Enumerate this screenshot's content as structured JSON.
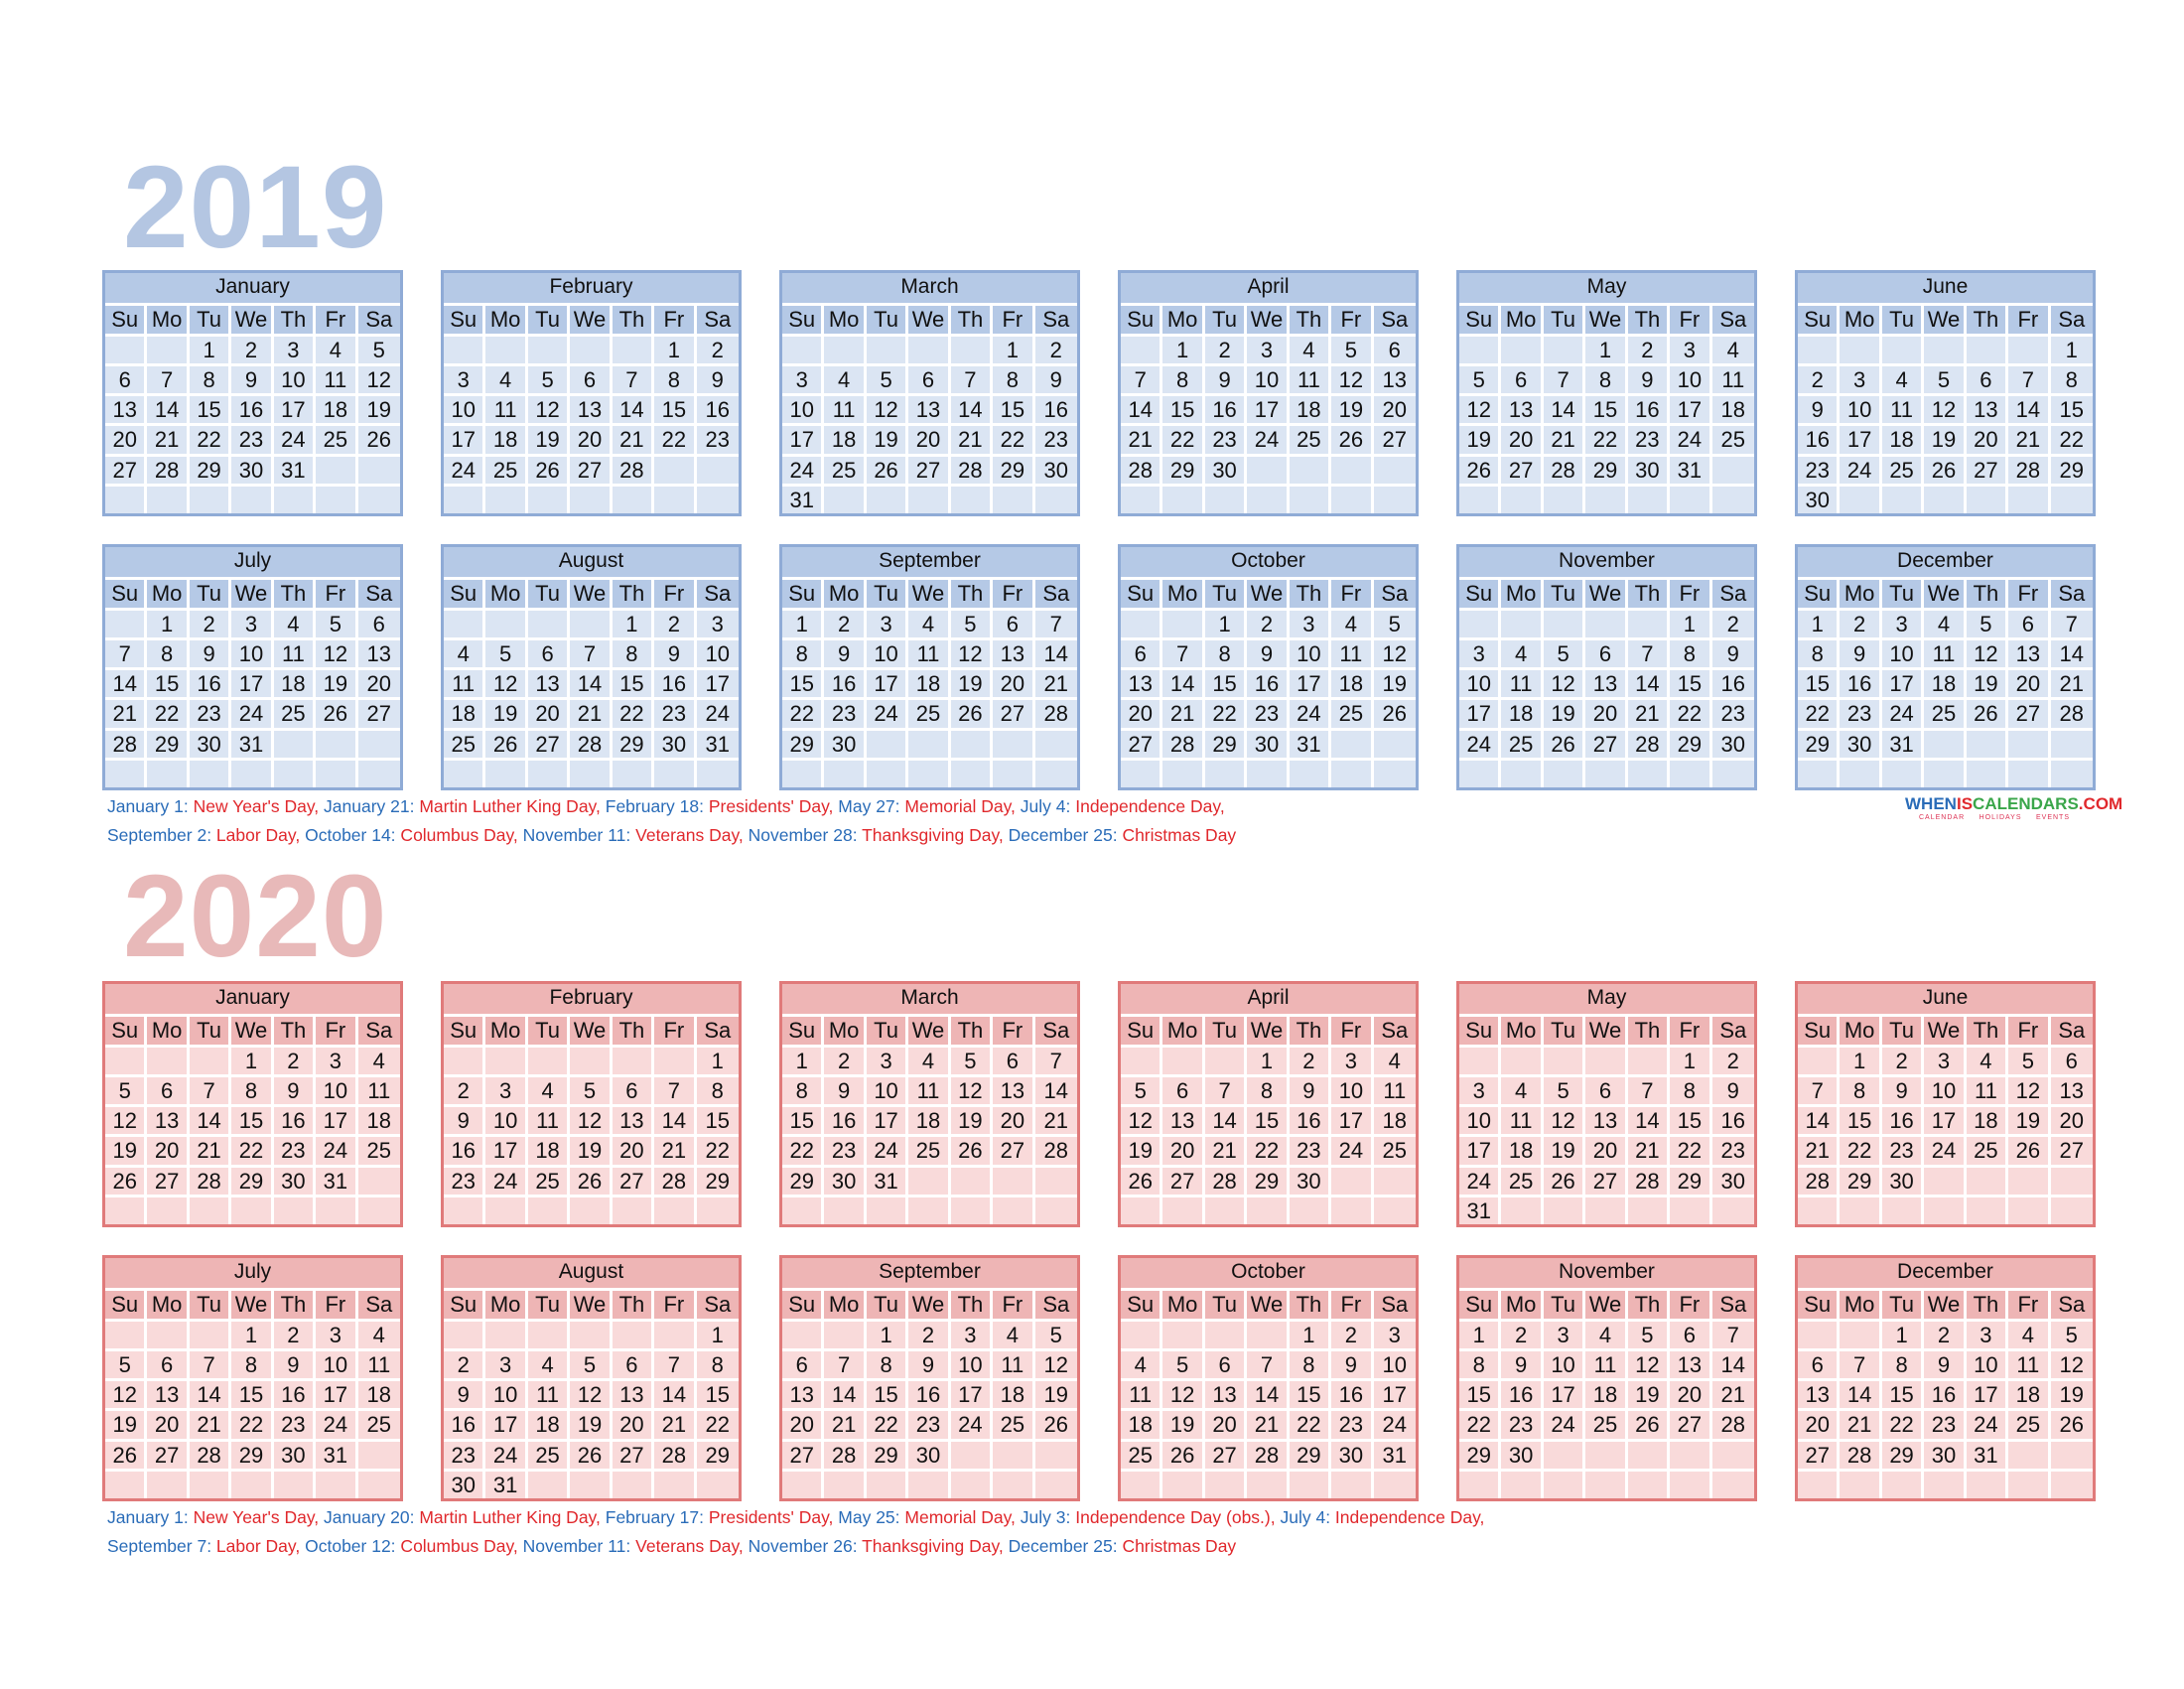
{
  "years": [
    {
      "year": "2019",
      "theme": "blue",
      "months": [
        {
          "name": "January",
          "offset": 2,
          "days": 31
        },
        {
          "name": "February",
          "offset": 5,
          "days": 28
        },
        {
          "name": "March",
          "offset": 5,
          "days": 31
        },
        {
          "name": "April",
          "offset": 1,
          "days": 30
        },
        {
          "name": "May",
          "offset": 3,
          "days": 31
        },
        {
          "name": "June",
          "offset": 6,
          "days": 30
        },
        {
          "name": "July",
          "offset": 1,
          "days": 31
        },
        {
          "name": "August",
          "offset": 4,
          "days": 31
        },
        {
          "name": "September",
          "offset": 0,
          "days": 30
        },
        {
          "name": "October",
          "offset": 2,
          "days": 31
        },
        {
          "name": "November",
          "offset": 5,
          "days": 30
        },
        {
          "name": "December",
          "offset": 0,
          "days": 31
        }
      ],
      "holidays": [
        [
          {
            "date": "January 1:",
            "name": "New Year's Day,"
          },
          {
            "date": "January 21:",
            "name": "Martin Luther King Day,"
          },
          {
            "date": "February 18:",
            "name": "Presidents' Day,"
          },
          {
            "date": "May 27:",
            "name": "Memorial Day,"
          },
          {
            "date": "July 4:",
            "name": "Independence Day,"
          }
        ],
        [
          {
            "date": "September 2:",
            "name": "Labor Day,"
          },
          {
            "date": "October 14:",
            "name": "Columbus Day,"
          },
          {
            "date": "November 11:",
            "name": "Veterans Day,"
          },
          {
            "date": "November 28:",
            "name": "Thanksgiving Day,"
          },
          {
            "date": "December 25:",
            "name": "Christmas Day"
          }
        ]
      ]
    },
    {
      "year": "2020",
      "theme": "red",
      "months": [
        {
          "name": "January",
          "offset": 3,
          "days": 31
        },
        {
          "name": "February",
          "offset": 6,
          "days": 29
        },
        {
          "name": "March",
          "offset": 0,
          "days": 31
        },
        {
          "name": "April",
          "offset": 3,
          "days": 30
        },
        {
          "name": "May",
          "offset": 5,
          "days": 31
        },
        {
          "name": "June",
          "offset": 1,
          "days": 30
        },
        {
          "name": "July",
          "offset": 3,
          "days": 31
        },
        {
          "name": "August",
          "offset": 6,
          "days": 31
        },
        {
          "name": "September",
          "offset": 2,
          "days": 30
        },
        {
          "name": "October",
          "offset": 4,
          "days": 31
        },
        {
          "name": "November",
          "offset": 0,
          "days": 30
        },
        {
          "name": "December",
          "offset": 2,
          "days": 31
        }
      ],
      "holidays": [
        [
          {
            "date": "January 1:",
            "name": "New Year's Day,"
          },
          {
            "date": "January 20:",
            "name": "Martin Luther King Day,"
          },
          {
            "date": "February 17:",
            "name": "Presidents' Day,"
          },
          {
            "date": "May 25:",
            "name": "Memorial Day,"
          },
          {
            "date": "July 3:",
            "name": "Independence Day (obs.),"
          },
          {
            "date": "July 4:",
            "name": "Independence Day,"
          }
        ],
        [
          {
            "date": "September 7:",
            "name": "Labor Day,"
          },
          {
            "date": "October 12:",
            "name": "Columbus Day,"
          },
          {
            "date": "November 11:",
            "name": "Veterans Day,"
          },
          {
            "date": "November 26:",
            "name": "Thanksgiving Day,"
          },
          {
            "date": "December 25:",
            "name": "Christmas Day"
          }
        ]
      ]
    }
  ],
  "weekdays": [
    "Su",
    "Mo",
    "Tu",
    "We",
    "Th",
    "Fr",
    "Sa"
  ],
  "logo": {
    "text": "WHENISCALENDARS.COM",
    "subtitle": [
      "CALENDAR",
      "HOLIDAYS",
      "EVENTS"
    ]
  },
  "colors": {
    "blue_border": "#8fabd6",
    "blue_header": "#b5c9e6",
    "blue_cell": "#dbe5f3",
    "red_border": "#e07a7a",
    "red_header": "#eeb5b5",
    "red_cell": "#f9dada",
    "holiday_date": "#2a6cb8",
    "holiday_name": "#e0282c"
  }
}
